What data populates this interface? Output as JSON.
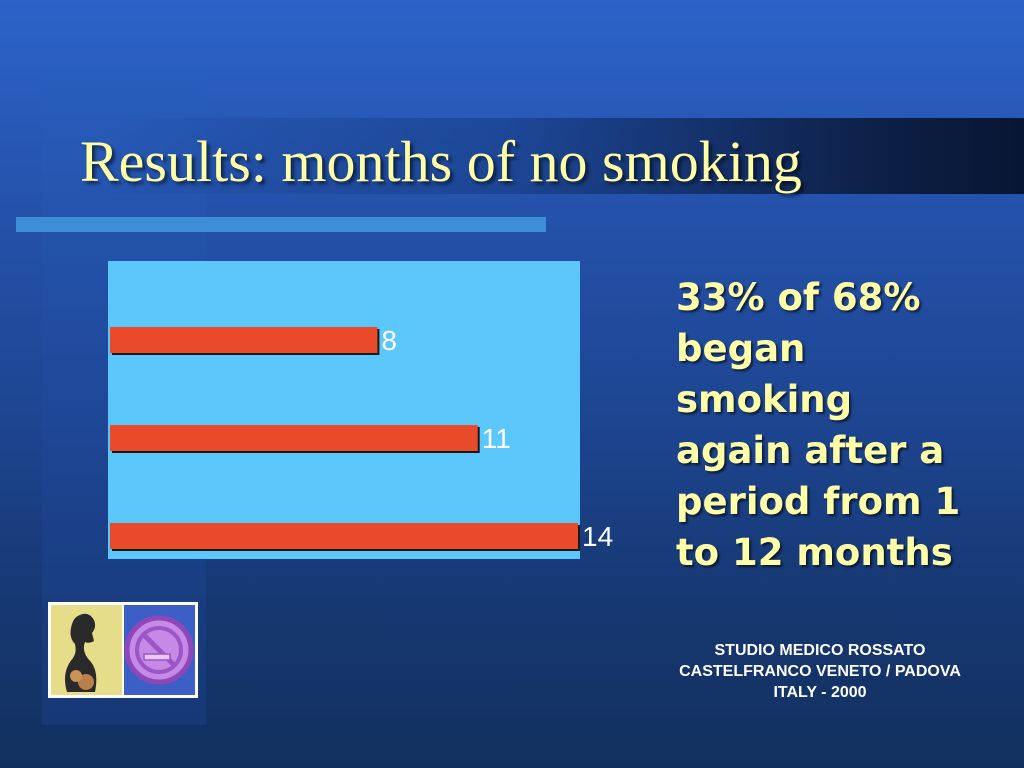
{
  "slide": {
    "title": "Results: months of no smoking",
    "callout": "33% of 68% began smoking again after a period from 1 to 12 months",
    "footer": [
      "STUDIO MEDICO ROSSATO",
      "CASTELFRANCO VENETO / PADOVA",
      "ITALY - 2000"
    ],
    "logo_icon": "woman-smoking-and-no-smoking-sign-icon"
  },
  "colors": {
    "title": "#ffffa8",
    "callout": "#ffffa8",
    "plot_background": "#5bc7fb",
    "bar": "#e84a2a",
    "accent_line": "#3f8fd8"
  },
  "chart_data": {
    "type": "bar",
    "orientation": "horizontal",
    "categories": [
      "",
      "",
      ""
    ],
    "values": [
      8,
      11,
      14
    ],
    "data_labels": [
      "8",
      "11",
      "14"
    ],
    "title": "",
    "xlabel": "",
    "ylabel": "",
    "xlim": [
      0,
      14
    ],
    "grid": false,
    "legend": "none"
  }
}
